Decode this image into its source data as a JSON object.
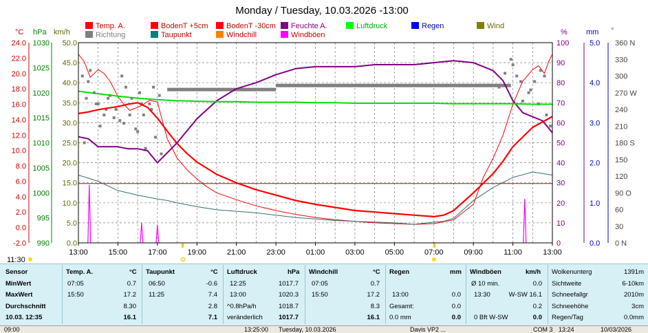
{
  "chart_data": {
    "type": "line",
    "title": "Monday / Tuesday, 10.03.2026  -13:00",
    "x_tick_labels": [
      "13:00",
      "15:00",
      "17:00",
      "19:00",
      "21:00",
      "23:00",
      "01:00",
      "03:00",
      "05:00",
      "07:00",
      "09:00",
      "11:00",
      "13:00"
    ],
    "x_range_hours": [
      0,
      24
    ],
    "x_start_label": "11:30",
    "axes": {
      "temp_c": {
        "label": "°C",
        "range": [
          -2.0,
          24.0
        ],
        "ticks": [
          "24.0",
          "22.0",
          "20.0",
          "18.0",
          "16.0",
          "14.0",
          "12.0",
          "10.0",
          "8.0",
          "6.0",
          "4.0",
          "2.0",
          "0.0",
          "-2.0"
        ]
      },
      "pressure_hpa": {
        "label": "hPa",
        "range": [
          990,
          1030
        ],
        "ticks": [
          "1030",
          "1025",
          "1020",
          "1015",
          "1010",
          "1005",
          "1000",
          "995",
          "990"
        ]
      },
      "wind_kmh": {
        "label": "km/h",
        "range": [
          0,
          50
        ],
        "ticks": [
          "50.0",
          "45.0",
          "40.0",
          "35.0",
          "30.0",
          "25.0",
          "20.0",
          "15.0",
          "10.0",
          "5.0",
          "0.0"
        ]
      },
      "humidity_pct": {
        "label": "%",
        "range": [
          0,
          100
        ],
        "ticks": [
          "100",
          "90",
          "80",
          "70",
          "60",
          "50",
          "40",
          "30",
          "20",
          "10",
          "0"
        ]
      },
      "rain_mm": {
        "label": "mm",
        "range": [
          0,
          5
        ],
        "ticks": [
          "5.0",
          "4.0",
          "3.0",
          "2.0",
          "1.0",
          "0.0"
        ]
      },
      "direction_deg": {
        "label": "°",
        "ticks": [
          "360 N",
          "330",
          "300",
          "270 W",
          "240",
          "210",
          "180 S",
          "150",
          "120",
          "90 O",
          "60",
          "30",
          "0 N"
        ]
      }
    },
    "legend": [
      {
        "name": "Temp. A.",
        "color": "#ff0000"
      },
      {
        "name": "BodenT +5cm",
        "color": "#ff0000"
      },
      {
        "name": "BodenT -30cm",
        "color": "#ff0000"
      },
      {
        "name": "Feuchte A.",
        "color": "#800080"
      },
      {
        "name": "Luftdruck",
        "color": "#00ff00"
      },
      {
        "name": "Regen",
        "color": "#0000ff"
      },
      {
        "name": "Wind",
        "color": "#808000"
      },
      {
        "name": "Richtung",
        "color": "#808080"
      },
      {
        "name": "Taupunkt",
        "color": "#008080"
      },
      {
        "name": "Windchill",
        "color": "#ff8000"
      },
      {
        "name": "Windböen",
        "color": "#ff00ff"
      }
    ],
    "series": [
      {
        "name": "Temp. A.",
        "axis": "temp_c",
        "color": "#ff0000",
        "width": 2.2,
        "x": [
          0,
          0.5,
          1,
          1.5,
          2,
          2.5,
          3,
          3.5,
          4,
          4.5,
          5,
          5.5,
          6,
          7,
          8,
          9,
          10,
          11,
          12,
          13,
          14,
          15,
          16,
          17,
          18,
          18.5,
          19,
          20,
          21,
          21.5,
          22,
          23,
          24
        ],
        "y": [
          14.8,
          15.0,
          15.3,
          15.5,
          15.7,
          16.0,
          16.2,
          15.6,
          14.2,
          12.5,
          10.9,
          9.6,
          8.5,
          6.9,
          5.8,
          4.9,
          4.2,
          3.5,
          3.0,
          2.6,
          2.2,
          2.0,
          1.8,
          1.6,
          1.4,
          1.6,
          2.2,
          4.5,
          7.0,
          8.6,
          10.5,
          13.0,
          14.4
        ]
      },
      {
        "name": "BodenT +5cm",
        "axis": "temp_c",
        "color": "#ff0000",
        "width": 1,
        "x": [
          0,
          0.3,
          0.6,
          1,
          1.3,
          1.6,
          2,
          2.3,
          2.6,
          3,
          3.3,
          3.6,
          4,
          4.5,
          5,
          5.5,
          6,
          6.5,
          7,
          8,
          9,
          10,
          11,
          12,
          13,
          14,
          15,
          16,
          17,
          18,
          19,
          20,
          20.5,
          21,
          21.5,
          22,
          22.5,
          23,
          23.3,
          23.6,
          23.8,
          24
        ],
        "y": [
          22.5,
          21.5,
          19.5,
          20.5,
          20.0,
          19.0,
          17.0,
          16.0,
          15.2,
          15.6,
          16.0,
          16.5,
          16.3,
          11.5,
          9.0,
          7.5,
          6.3,
          5.3,
          4.5,
          3.6,
          2.8,
          2.2,
          1.7,
          1.3,
          1.0,
          0.8,
          0.6,
          0.5,
          0.4,
          0.5,
          1.0,
          3.0,
          6.5,
          9.0,
          12.0,
          16.0,
          19.0,
          20.5,
          21.0,
          20.0,
          21.5,
          22.5
        ]
      },
      {
        "name": "BodenT -30cm",
        "axis": "temp_c",
        "color": "#cc0000",
        "width": 1,
        "x": [
          0,
          24
        ],
        "y": [
          5.7,
          5.7
        ]
      },
      {
        "name": "Taupunkt",
        "axis": "temp_c",
        "color": "#2f6f6f",
        "width": 1,
        "x": [
          0,
          1,
          2,
          3,
          4,
          4.5,
          5,
          6,
          7,
          8,
          9,
          10,
          11,
          12,
          13,
          14,
          15,
          16,
          17,
          18,
          18.5,
          19,
          20,
          21,
          22,
          23,
          24
        ],
        "y": [
          6.8,
          6.0,
          4.8,
          4.2,
          3.7,
          3.5,
          3.2,
          2.7,
          2.3,
          2.1,
          1.9,
          1.6,
          1.3,
          1.1,
          0.9,
          0.8,
          0.7,
          0.6,
          0.4,
          0.7,
          0.8,
          1.2,
          3.5,
          5.2,
          6.5,
          7.2,
          6.8
        ]
      },
      {
        "name": "Feuchte A.",
        "axis": "humidity_pct",
        "color": "#800080",
        "width": 2,
        "x": [
          0,
          0.5,
          1,
          1.5,
          2,
          2.5,
          3,
          3.5,
          4,
          5,
          6,
          7,
          8,
          9,
          10,
          11,
          12,
          13,
          14,
          15,
          16,
          17,
          18,
          19,
          20,
          21,
          21.5,
          22,
          22.5,
          23,
          23.5,
          24
        ],
        "y": [
          53,
          52,
          48,
          48,
          48,
          47,
          47,
          46,
          40,
          50,
          62,
          71,
          77,
          80,
          84,
          87,
          88,
          88,
          88,
          89,
          89,
          89,
          90,
          91,
          90,
          86,
          81,
          71,
          65,
          63,
          61,
          55
        ]
      },
      {
        "name": "Luftdruck",
        "axis": "pressure_hpa",
        "color": "#00e000",
        "width": 2,
        "x": [
          0,
          1,
          2,
          3,
          4,
          5,
          6,
          7,
          8,
          9,
          10,
          11,
          12,
          13,
          14,
          15,
          16,
          17,
          18,
          19,
          20,
          21,
          22,
          23,
          24
        ],
        "y": [
          1020.3,
          1019.8,
          1019.3,
          1018.9,
          1018.6,
          1018.4,
          1018.3,
          1018.2,
          1018.2,
          1018.1,
          1018.1,
          1018.1,
          1018.0,
          1018.0,
          1017.9,
          1017.9,
          1017.9,
          1017.9,
          1017.9,
          1017.8,
          1017.8,
          1017.8,
          1017.8,
          1017.7,
          1017.7
        ]
      }
    ],
    "wind_bars": [
      {
        "name": "Wind",
        "axis": "wind_kmh",
        "color": "#808080",
        "width": 5,
        "segments": [
          {
            "x0": 4.5,
            "x1": 10.0,
            "y": 38.3
          },
          {
            "x0": 10.0,
            "x1": 21.9,
            "y": 39.3
          }
        ]
      }
    ],
    "direction_points": {
      "name": "Richtung",
      "axis": "direction_deg",
      "color": "#808080",
      "x": [
        0.2,
        0.5,
        0.8,
        1.0,
        1.3,
        1.6,
        1.9,
        2.1,
        2.4,
        2.7,
        3.0,
        3.3,
        3.6,
        3.9,
        0.3,
        0.6,
        1.1,
        1.5,
        2.2,
        2.6,
        3.1,
        3.4,
        3.7,
        0.4,
        0.9,
        1.4,
        1.8,
        2.3,
        2.9,
        3.2,
        3.8,
        4.1,
        4.2,
        21.3,
        21.6,
        21.9,
        22.2,
        22.5,
        22.8,
        23.1,
        23.4,
        23.7,
        23.9,
        22.0,
        22.4,
        22.9,
        23.3,
        23.6
      ],
      "y": [
        300,
        290,
        270,
        250,
        230,
        265,
        240,
        220,
        280,
        260,
        200,
        230,
        250,
        190,
        180,
        310,
        210,
        260,
        300,
        230,
        270,
        170,
        240,
        260,
        250,
        240,
        225,
        215,
        205,
        250,
        280,
        265,
        160,
        280,
        305,
        330,
        300,
        255,
        270,
        290,
        310,
        230,
        210,
        320,
        290,
        275,
        250,
        300
      ]
    },
    "gusts": {
      "name": "Windböen",
      "axis": "wind_kmh",
      "color": "#ff00ff",
      "spikes": [
        {
          "x": 0.55,
          "y": 14.5
        },
        {
          "x": 3.2,
          "y": 5.0
        },
        {
          "x": 4.0,
          "y": 4.5
        },
        {
          "x": 22.6,
          "y": 11.0
        }
      ]
    },
    "legend_label_colors": {
      "red": "#cc0000",
      "purple": "#800080",
      "green": "#00aa00",
      "blue": "#0000cc",
      "olive": "#666600"
    }
  },
  "stats": {
    "sensor": {
      "header": "Sensor",
      "rows": [
        "MinWert",
        "MaxWert",
        "Durchschnitt",
        "10.03. 12:35"
      ]
    },
    "temp": {
      "header": "Temp. A.",
      "unit": "°C",
      "rows": [
        [
          "07:05",
          "0.7"
        ],
        [
          "15:50",
          "17.2"
        ],
        [
          "",
          "8.30"
        ],
        [
          "",
          "16.1"
        ]
      ]
    },
    "taupunkt": {
      "header": "Taupunkt",
      "unit": "°C",
      "rows": [
        [
          "06:50",
          "-0.6"
        ],
        [
          "11:25",
          "7.4"
        ],
        [
          "",
          "2.8"
        ],
        [
          "",
          "7.1"
        ]
      ]
    },
    "luftdruck": {
      "header": "Luftdruck",
      "unit": "hPa",
      "rows": [
        [
          "12:25",
          "1017.7"
        ],
        [
          "13:00",
          "1020.3"
        ],
        [
          "^0.8hPa/h",
          "1018.7"
        ],
        [
          "veränderlich",
          "1017.7"
        ]
      ]
    },
    "windchill": {
      "header": "Windchill",
      "unit": "°C",
      "rows": [
        [
          "07:05",
          "0.7"
        ],
        [
          "15:50",
          "17.2"
        ],
        [
          "",
          "8.3"
        ],
        [
          "",
          "16.1"
        ]
      ]
    },
    "regen": {
      "header": "Regen",
      "unit": "mm",
      "rows": [
        [
          "",
          ""
        ],
        [
          "13:00",
          "0.0"
        ],
        [
          "Gesamt:",
          "0.0"
        ],
        [
          "0.0 mm",
          "0.0"
        ]
      ]
    },
    "windboeen": {
      "header": "Windböen",
      "unit": "km/h",
      "rows": [
        [
          "Ø 10 min.",
          "0.0"
        ],
        [
          "13:30",
          "W-SW 16.1"
        ],
        [
          "",
          "0.2"
        ],
        [
          "0 Bft W-SW",
          "0.0"
        ]
      ]
    },
    "extra": {
      "rows": [
        [
          "Wolkenunterg",
          "1391m"
        ],
        [
          "Sichtweite",
          "6-10km"
        ],
        [
          "Schneefallgr",
          "2010m"
        ],
        [
          "Schneehöhe",
          "3cm"
        ],
        [
          "Regen/Tag",
          "0.0mm"
        ]
      ]
    }
  },
  "status_bar": {
    "items": [
      "09:00",
      "13:25:00",
      "Tuesday, 10.03.2026",
      "Davis VP2 ...",
      "COM 3",
      "13:24",
      "10/03/2026"
    ]
  }
}
